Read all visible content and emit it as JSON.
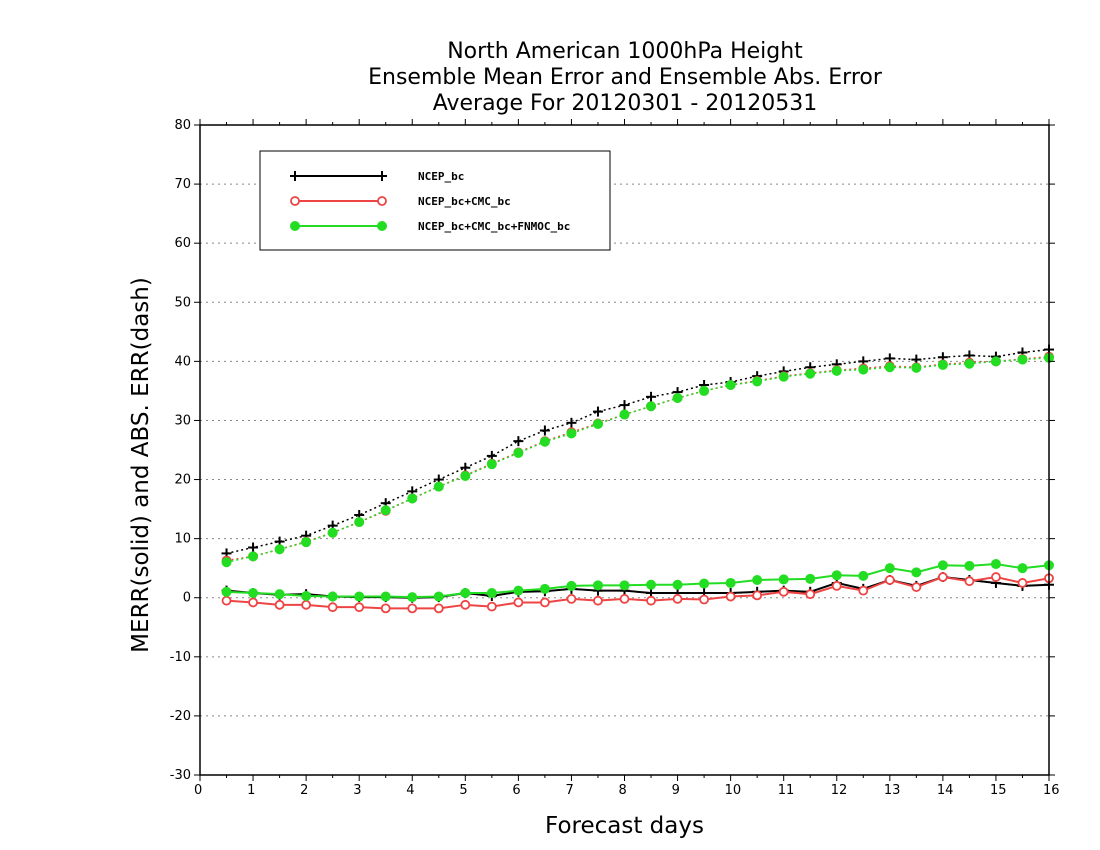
{
  "chart_data": {
    "type": "line",
    "title": [
      "North American 1000hPa Height",
      "Ensemble Mean Error and Ensemble Abs. Error",
      "Average For 20120301 - 20120531"
    ],
    "xlabel": "Forecast days",
    "ylabel": "MERR(solid) and ABS. ERR(dash)",
    "xlim": [
      0,
      16
    ],
    "ylim": [
      -30,
      80
    ],
    "xticks": [
      "0",
      "1",
      "2",
      "3",
      "4",
      "5",
      "6",
      "7",
      "8",
      "9",
      "10",
      "11",
      "12",
      "13",
      "14",
      "15",
      "16"
    ],
    "yticks": [
      "-30",
      "-20",
      "-10",
      "0",
      "10",
      "20",
      "30",
      "40",
      "50",
      "60",
      "70",
      "80"
    ],
    "grid": true,
    "legend_position": "top-left",
    "x": [
      0.5,
      1,
      1.5,
      2,
      2.5,
      3,
      3.5,
      4,
      4.5,
      5,
      5.5,
      6,
      6.5,
      7,
      7.5,
      8,
      8.5,
      9,
      9.5,
      10,
      10.5,
      11,
      11.5,
      12,
      12.5,
      13,
      13.5,
      14,
      14.5,
      15,
      15.5,
      16
    ],
    "series": [
      {
        "name": "NCEP_bc",
        "color": "#000000",
        "marker": "plus",
        "merr": [
          1.2,
          0.8,
          0.5,
          0.6,
          0.2,
          0.1,
          0.1,
          0.0,
          0.1,
          0.8,
          0.3,
          1.0,
          1.1,
          1.5,
          1.2,
          1.2,
          0.8,
          0.8,
          0.8,
          0.8,
          1.0,
          1.2,
          1.0,
          2.5,
          1.5,
          3.0,
          2.0,
          3.5,
          3.0,
          2.5,
          2.0,
          2.2
        ],
        "abs_err": [
          7.5,
          8.5,
          9.5,
          10.5,
          12.2,
          14.0,
          16.0,
          18.0,
          20.0,
          22.0,
          24.0,
          26.5,
          28.3,
          29.6,
          31.5,
          32.6,
          34.0,
          34.8,
          36.0,
          36.5,
          37.5,
          38.3,
          39.0,
          39.5,
          40.0,
          40.5,
          40.3,
          40.7,
          41.0,
          40.8,
          41.5,
          42.0
        ]
      },
      {
        "name": "NCEP_bc+CMC_bc",
        "color": "#ee4444",
        "marker": "circle-open",
        "merr": [
          -0.5,
          -0.8,
          -1.2,
          -1.2,
          -1.6,
          -1.6,
          -1.8,
          -1.8,
          -1.8,
          -1.2,
          -1.5,
          -0.8,
          -0.8,
          -0.2,
          -0.5,
          -0.2,
          -0.5,
          -0.2,
          -0.3,
          0.2,
          0.4,
          1.0,
          0.6,
          2.0,
          1.2,
          3.0,
          1.8,
          3.5,
          2.8,
          3.5,
          2.5,
          3.3
        ],
        "abs_err": [
          6.3,
          7.0,
          8.2,
          9.5,
          11.0,
          12.8,
          14.7,
          16.8,
          18.8,
          20.7,
          22.7,
          24.6,
          26.5,
          28.0,
          29.5,
          31.0,
          32.4,
          33.8,
          35.0,
          36.0,
          36.7,
          37.5,
          38.0,
          38.5,
          38.8,
          39.2,
          39.0,
          39.5,
          39.8,
          40.0,
          40.4,
          40.8
        ]
      },
      {
        "name": "NCEP_bc+CMC_bc+FNMOC_bc",
        "color": "#22dd22",
        "marker": "circle-filled",
        "merr": [
          1.0,
          0.8,
          0.6,
          0.3,
          0.2,
          0.2,
          0.2,
          0.1,
          0.2,
          0.8,
          0.8,
          1.2,
          1.5,
          2.0,
          2.1,
          2.1,
          2.2,
          2.2,
          2.4,
          2.5,
          3.0,
          3.1,
          3.2,
          3.8,
          3.7,
          5.0,
          4.3,
          5.5,
          5.4,
          5.7,
          5.0,
          5.5
        ],
        "abs_err": [
          6.0,
          7.0,
          8.2,
          9.4,
          11.0,
          12.8,
          14.8,
          16.8,
          18.8,
          20.6,
          22.6,
          24.5,
          26.4,
          27.8,
          29.4,
          31.0,
          32.4,
          33.8,
          35.0,
          36.0,
          36.6,
          37.4,
          37.9,
          38.4,
          38.6,
          39.0,
          38.9,
          39.4,
          39.6,
          40.0,
          40.3,
          40.6
        ]
      }
    ]
  }
}
